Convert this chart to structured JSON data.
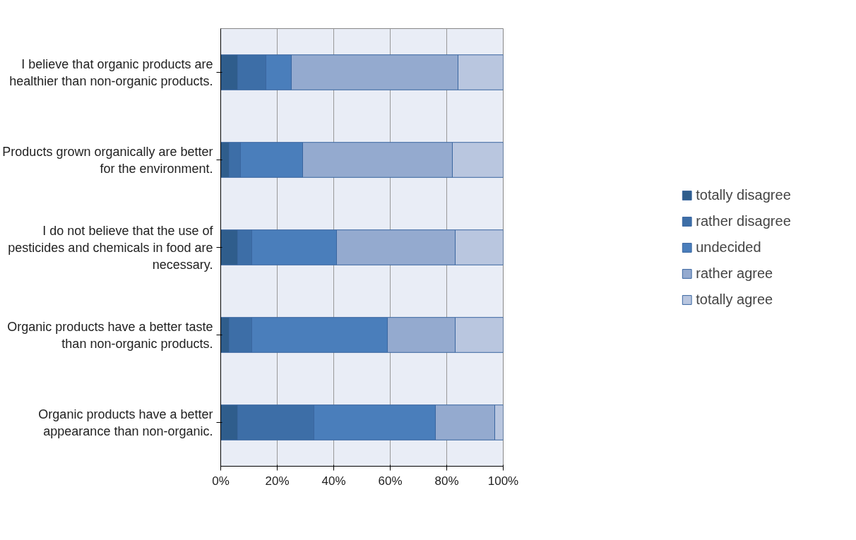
{
  "chart_data": {
    "type": "bar",
    "orientation": "horizontal",
    "stacked": true,
    "categories": [
      "I believe that organic products are healthier than non-organic products.",
      "Products grown organically are better for the environment.",
      "I do not believe that the use of pesticides and chemicals in food are necessary.",
      "Organic products have a better taste than non-organic products.",
      "Organic products have a better appearance than non-organic."
    ],
    "series": [
      {
        "name": "totally disagree",
        "color": "#2f5d8c",
        "values": [
          6,
          3,
          6,
          3,
          6
        ]
      },
      {
        "name": "rather disagree",
        "color": "#3d6ea7",
        "values": [
          10,
          4,
          5,
          8,
          27
        ]
      },
      {
        "name": "undecided",
        "color": "#4a7ebb",
        "values": [
          9,
          22,
          30,
          48,
          43
        ]
      },
      {
        "name": "rather agree",
        "color": "#94aacf",
        "values": [
          59,
          53,
          42,
          24,
          21
        ]
      },
      {
        "name": "totally agree",
        "color": "#b9c6df",
        "values": [
          16,
          18,
          17,
          17,
          3
        ]
      }
    ],
    "xlim": [
      0,
      100
    ],
    "xticks": [
      {
        "value": 0,
        "label": "0%"
      },
      {
        "value": 20,
        "label": "20%"
      },
      {
        "value": 40,
        "label": "40%"
      },
      {
        "value": 60,
        "label": "60%"
      },
      {
        "value": 80,
        "label": "80%"
      },
      {
        "value": 100,
        "label": "100%"
      }
    ],
    "grid": "x",
    "legend": "right"
  }
}
